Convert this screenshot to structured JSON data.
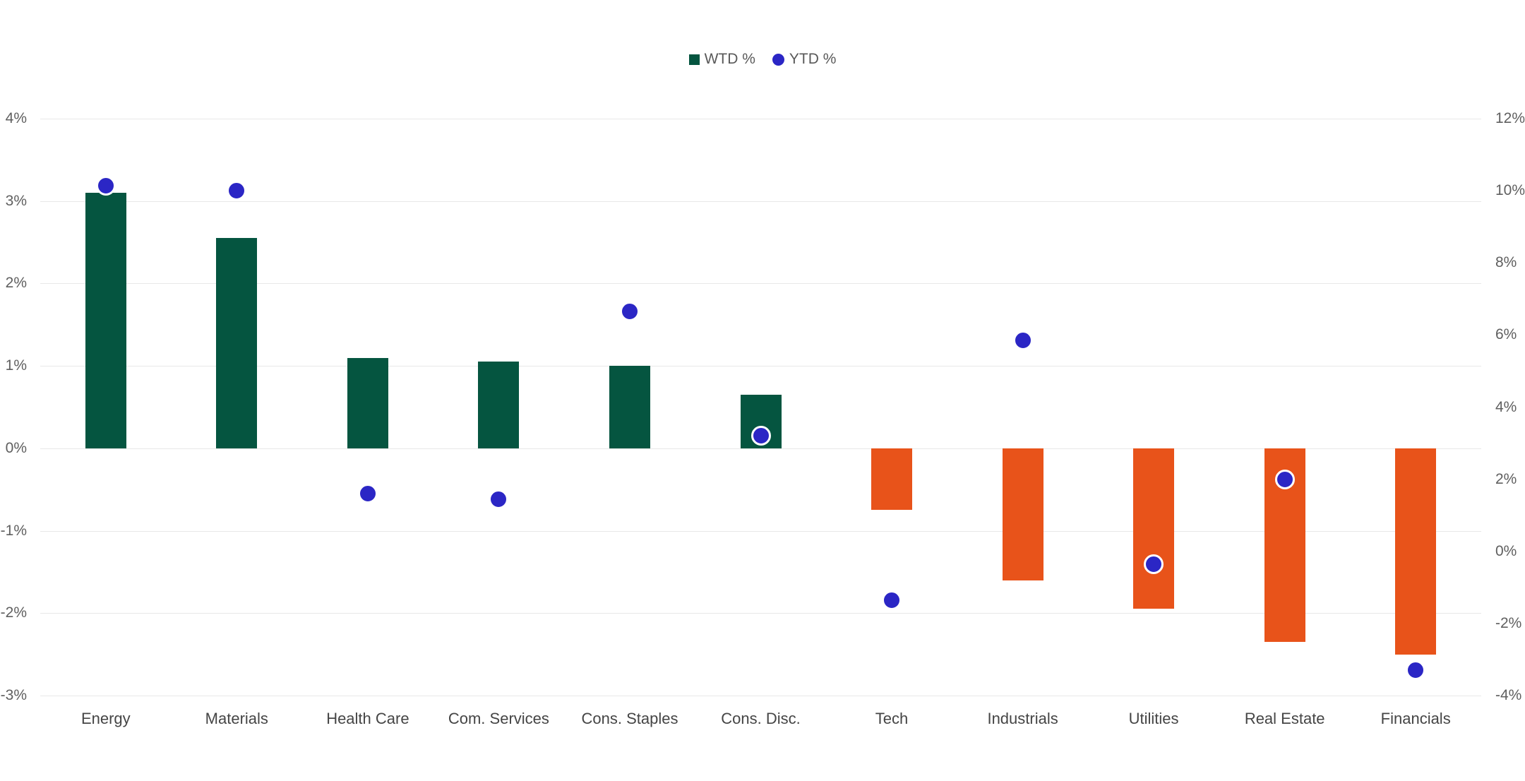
{
  "chart_data": {
    "type": "bar",
    "title": "",
    "categories": [
      "Energy",
      "Materials",
      "Health Care",
      "Com. Services",
      "Cons. Staples",
      "Cons. Disc.",
      "Tech",
      "Industrials",
      "Utilities",
      "Real Estate",
      "Financials"
    ],
    "series": [
      {
        "name": "WTD %",
        "type": "bar",
        "axis": "left",
        "color_positive": "#055540",
        "color_negative": "#E8531A",
        "values": [
          3.1,
          2.55,
          1.1,
          1.05,
          1.0,
          0.65,
          -0.75,
          -1.6,
          -1.95,
          -2.35,
          -2.5
        ]
      },
      {
        "name": "YTD %",
        "type": "scatter",
        "axis": "right",
        "color": "#2B26C5",
        "values": [
          10.15,
          10.0,
          1.6,
          1.45,
          6.65,
          3.2,
          -1.35,
          5.85,
          -0.35,
          2.0,
          -3.3
        ]
      }
    ],
    "left_axis": {
      "min": -3,
      "max": 4,
      "tick_step": 1,
      "tick_labels": [
        "4%",
        "3%",
        "2%",
        "1%",
        "0%",
        "-1%",
        "-2%",
        "-3%"
      ]
    },
    "right_axis": {
      "min": -4,
      "max": 12,
      "tick_step": 2,
      "tick_labels": [
        "12%",
        "10%",
        "8%",
        "6%",
        "4%",
        "2%",
        "0%",
        "-2%",
        "-4%"
      ]
    },
    "grid": true,
    "legend_position": "top-center",
    "colors": {
      "grid": "#E8E8E8",
      "tick_text": "#5F5F5F",
      "category_text": "#454545",
      "legend_text": "#595959",
      "background": "#FFFFFF"
    }
  }
}
